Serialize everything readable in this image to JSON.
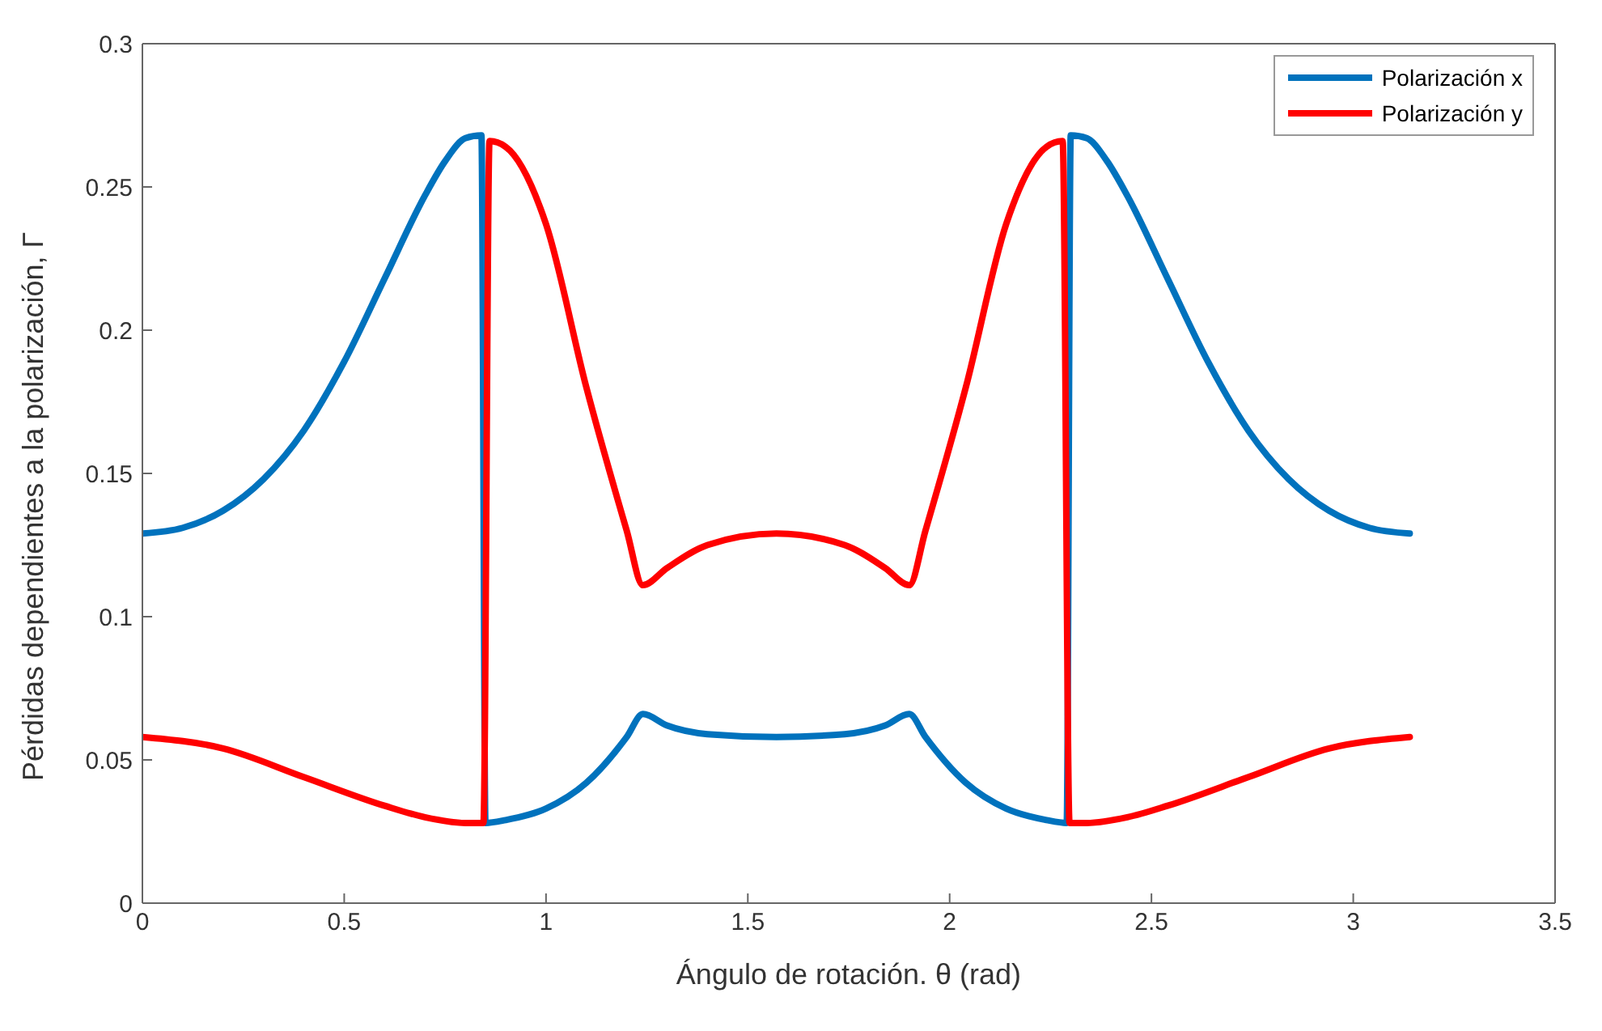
{
  "chart_data": {
    "type": "line",
    "xlabel": "Ángulo de rotación. θ (rad)",
    "ylabel": "Pérdidas dependientes a la polarización, Γ",
    "xlim": [
      0,
      3.5
    ],
    "xticks": [
      0,
      0.5,
      1,
      1.5,
      2,
      2.5,
      3,
      3.5
    ],
    "ylim": [
      0,
      0.3
    ],
    "yticks": [
      0,
      0.05,
      0.1,
      0.15,
      0.2,
      0.25,
      0.3
    ],
    "grid": false,
    "legend": "top right",
    "marker": "none",
    "line_style": "solid",
    "series": [
      {
        "name": "Polarización x",
        "color": "#0072bd",
        "x": [
          0,
          0.1,
          0.2,
          0.3,
          0.4,
          0.5,
          0.6,
          0.7,
          0.75,
          0.8,
          0.84,
          0.85,
          0.9,
          1.0,
          1.1,
          1.2,
          1.24,
          1.3,
          1.4,
          1.5708,
          1.74,
          1.84,
          1.9,
          1.94,
          2.04,
          2.14,
          2.24,
          2.29,
          2.3,
          2.34,
          2.39,
          2.44,
          2.54,
          2.64,
          2.74,
          2.84,
          2.94,
          3.04,
          3.14
        ],
        "values": [
          0.129,
          0.131,
          0.137,
          0.148,
          0.165,
          0.189,
          0.218,
          0.247,
          0.259,
          0.267,
          0.268,
          0.028,
          0.029,
          0.033,
          0.042,
          0.058,
          0.066,
          0.062,
          0.059,
          0.058,
          0.059,
          0.062,
          0.066,
          0.058,
          0.042,
          0.033,
          0.029,
          0.028,
          0.268,
          0.267,
          0.259,
          0.247,
          0.218,
          0.189,
          0.165,
          0.148,
          0.137,
          0.131,
          0.129
        ]
      },
      {
        "name": "Polarización y",
        "color": "#ff0000",
        "x": [
          0,
          0.2,
          0.4,
          0.6,
          0.7,
          0.8,
          0.845,
          0.86,
          0.9,
          1.0,
          1.1,
          1.2,
          1.24,
          1.3,
          1.4,
          1.5708,
          1.74,
          1.84,
          1.9,
          1.94,
          2.04,
          2.14,
          2.24,
          2.28,
          2.297,
          2.34,
          2.44,
          2.54,
          2.74,
          2.94,
          3.14
        ],
        "values": [
          0.058,
          0.054,
          0.044,
          0.034,
          0.03,
          0.028,
          0.028,
          0.266,
          0.264,
          0.237,
          0.18,
          0.13,
          0.111,
          0.117,
          0.125,
          0.129,
          0.125,
          0.117,
          0.111,
          0.13,
          0.18,
          0.237,
          0.264,
          0.266,
          0.028,
          0.028,
          0.03,
          0.034,
          0.044,
          0.054,
          0.058
        ]
      }
    ]
  }
}
